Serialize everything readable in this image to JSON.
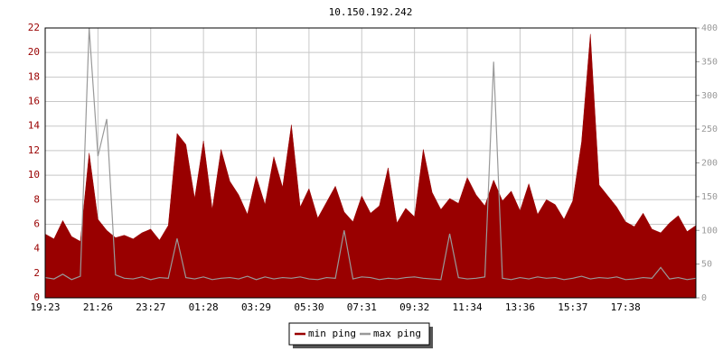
{
  "chart_data": {
    "type": "area",
    "title": "10.150.192.242",
    "categories": [
      "19:23",
      null,
      null,
      null,
      null,
      null,
      "21:26",
      null,
      null,
      null,
      null,
      null,
      "23:27",
      null,
      null,
      null,
      null,
      null,
      "01:28",
      null,
      null,
      null,
      null,
      null,
      "03:29",
      null,
      null,
      null,
      null,
      null,
      "05:30",
      null,
      null,
      null,
      null,
      null,
      "07:31",
      null,
      null,
      null,
      null,
      null,
      "09:32",
      null,
      null,
      null,
      null,
      null,
      "11:34",
      null,
      null,
      null,
      null,
      null,
      "13:36",
      null,
      null,
      null,
      null,
      null,
      "15:37",
      null,
      null,
      null,
      null,
      null,
      "17:38",
      null,
      null,
      null,
      null,
      null,
      null,
      null,
      null
    ],
    "series": [
      {
        "name": "min ping",
        "color": "#990000",
        "axis": "y",
        "values": [
          5.2,
          4.8,
          6.3,
          5.0,
          4.6,
          11.8,
          6.4,
          5.5,
          4.9,
          5.1,
          4.8,
          5.3,
          5.6,
          4.7,
          5.9,
          13.4,
          12.5,
          8.1,
          12.8,
          7.2,
          12.1,
          9.5,
          8.4,
          6.8,
          9.9,
          7.6,
          11.5,
          9.0,
          14.1,
          7.4,
          8.9,
          6.5,
          7.8,
          9.1,
          7.0,
          6.2,
          8.3,
          6.9,
          7.5,
          10.6,
          6.1,
          7.3,
          6.6,
          12.1,
          8.6,
          7.2,
          8.1,
          7.7,
          9.8,
          8.4,
          7.5,
          9.6,
          7.9,
          8.7,
          7.1,
          9.3,
          6.8,
          8.0,
          7.6,
          6.4,
          7.9,
          12.7,
          21.5,
          9.2,
          8.3,
          7.4,
          6.2,
          5.8,
          6.9,
          5.6,
          5.3,
          6.1,
          6.7,
          5.4,
          5.9
        ]
      },
      {
        "name": "max ping",
        "color": "#999999",
        "axis": "y2",
        "values": [
          30,
          28,
          35,
          27,
          32,
          400,
          210,
          265,
          34,
          29,
          28,
          31,
          27,
          30,
          29,
          88,
          30,
          28,
          31,
          27,
          29,
          30,
          28,
          32,
          27,
          31,
          28,
          30,
          29,
          31,
          28,
          27,
          30,
          29,
          100,
          28,
          31,
          30,
          27,
          29,
          28,
          30,
          31,
          29,
          28,
          27,
          95,
          30,
          28,
          29,
          31,
          350,
          29,
          27,
          30,
          28,
          31,
          29,
          30,
          27,
          29,
          32,
          28,
          30,
          29,
          31,
          27,
          28,
          30,
          29,
          45,
          28,
          30,
          27,
          29
        ]
      }
    ],
    "ylim": [
      0,
      22
    ],
    "yticks": [
      0,
      2,
      4,
      6,
      8,
      10,
      12,
      14,
      16,
      18,
      20,
      22
    ],
    "y2lim": [
      0,
      400
    ],
    "y2ticks": [
      0,
      50,
      100,
      150,
      200,
      250,
      300,
      350,
      400
    ],
    "grid": true,
    "legend": "bottom"
  }
}
